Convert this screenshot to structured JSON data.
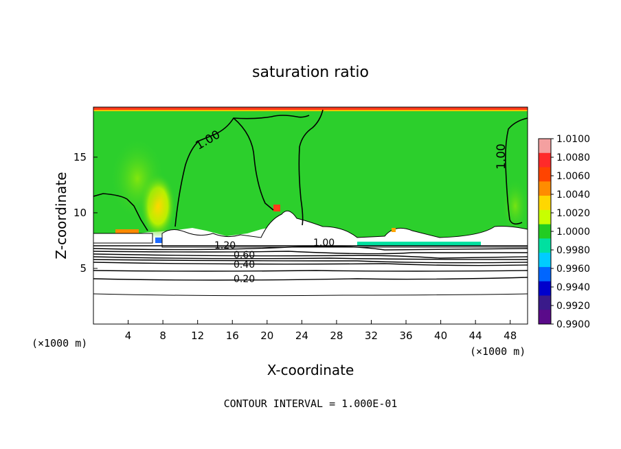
{
  "chart_data": {
    "type": "heatmap",
    "title": "saturation ratio",
    "xlabel": "X-coordinate",
    "ylabel": "Z-coordinate",
    "x_unit_left": "(×1000 m)",
    "x_unit_right": "(×1000 m)",
    "xlim": [
      0,
      50
    ],
    "ylim": [
      0,
      19.5
    ],
    "x_ticks": [
      4,
      8,
      12,
      16,
      20,
      24,
      28,
      32,
      36,
      40,
      44,
      48
    ],
    "y_ticks": [
      5,
      10,
      15
    ],
    "colorbar": {
      "min": 0.99,
      "max": 1.01,
      "labels": [
        "1.0100",
        "1.0080",
        "1.0060",
        "1.0040",
        "1.0020",
        "1.0000",
        "0.9980",
        "0.9960",
        "0.9940",
        "0.9920",
        "0.9900"
      ],
      "colors": [
        "#f4a0a0",
        "#ff2a2a",
        "#ff4400",
        "#ff8c00",
        "#ffd700",
        "#c8ff00",
        "#22cc22",
        "#00e0a0",
        "#00ccff",
        "#0066ff",
        "#0000cc",
        "#3a1a8a",
        "#5a0a8a"
      ]
    },
    "contour_labels": [
      "1.00",
      "1.00",
      "1.00",
      "1.20",
      "0.60",
      "0.40",
      "0.20"
    ],
    "footer": "CONTOUR INTERVAL = 1.000E-01"
  }
}
